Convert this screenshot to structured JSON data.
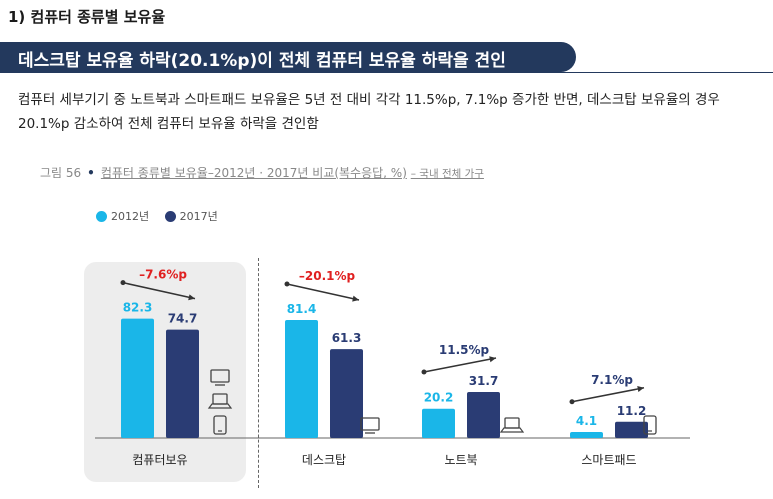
{
  "section_title": "1) 컴퓨터 종류별 보유율",
  "banner_text": "데스크탑 보유율 하락(20.1%p)이 전체 컴퓨터 보유율 하락을 견인",
  "body_text": "컴퓨터 세부기기 중 노트북과 스마트패드 보유율은 5년 전 대비 각각 11.5%p, 7.1%p 증가한 반면, 데스크탑 보유율의 경우 20.1%p 감소하여 전체 컴퓨터 보유율 하락을 견인함",
  "caption": {
    "figure": "그림 56",
    "title": "컴퓨터 종류별 보유율–2012년 · 2017년 비교(복수응답, %)",
    "sub": "– 국내 전체 가구"
  },
  "colors": {
    "y2012": "#1ab6e8",
    "y2017": "#2a3c74",
    "up": "#2a3c74",
    "down": "#e02020",
    "arrow": "#333333"
  },
  "chart_data": {
    "type": "bar",
    "title": "컴퓨터 종류별 보유율–2012년 · 2017년 비교(복수응답, %)",
    "categories": [
      "컴퓨터보유",
      "데스크탑",
      "노트북",
      "스마트패드"
    ],
    "series": [
      {
        "name": "2012년",
        "values": [
          82.3,
          81.4,
          20.2,
          4.1
        ]
      },
      {
        "name": "2017년",
        "values": [
          74.7,
          61.3,
          31.7,
          11.2
        ]
      }
    ],
    "changes": [
      {
        "text": "–7.6%p",
        "direction": "down"
      },
      {
        "text": "–20.1%p",
        "direction": "down"
      },
      {
        "text": "11.5%p",
        "direction": "up"
      },
      {
        "text": "7.1%p",
        "direction": "up"
      }
    ],
    "icons": [
      [
        "desktop-icon",
        "laptop-icon",
        "tablet-icon"
      ],
      [
        "desktop-icon"
      ],
      [
        "laptop-icon"
      ],
      [
        "tablet-icon"
      ]
    ],
    "ylim": [
      0,
      100
    ],
    "legend": "top-left",
    "grid": false
  }
}
